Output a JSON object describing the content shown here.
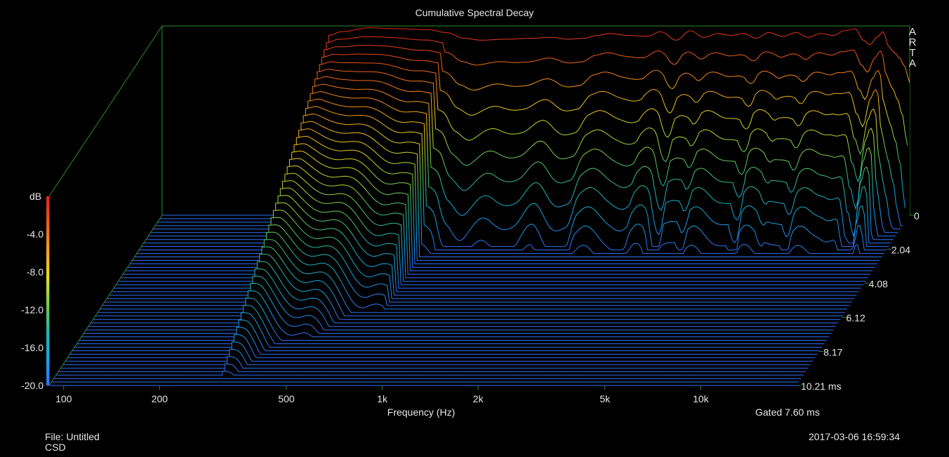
{
  "chart_data": {
    "type": "waterfall",
    "title": "Cumulative Spectral Decay",
    "brand": "ARTA",
    "xlabel": "Frequency (Hz)",
    "x_ticks": [
      {
        "value": 100,
        "label": "100"
      },
      {
        "value": 200,
        "label": "200"
      },
      {
        "value": 500,
        "label": "500"
      },
      {
        "value": 1000,
        "label": "1k"
      },
      {
        "value": 2000,
        "label": "2k"
      },
      {
        "value": 5000,
        "label": "5k"
      },
      {
        "value": 10000,
        "label": "10k"
      }
    ],
    "xlim": [
      90,
      20000
    ],
    "x_scale": "log",
    "zlabel": "dB",
    "z_ticks": [
      {
        "value": -4,
        "label": "-4.0"
      },
      {
        "value": -8,
        "label": "-8.0"
      },
      {
        "value": -12,
        "label": "-12.0"
      },
      {
        "value": -16,
        "label": "-16.0"
      },
      {
        "value": -20,
        "label": "-20.0"
      }
    ],
    "zlim": [
      -20,
      0
    ],
    "time_ticks": [
      {
        "value": 0,
        "label": "0"
      },
      {
        "value": 2.04,
        "label": "2.04"
      },
      {
        "value": 4.08,
        "label": "4.08"
      },
      {
        "value": 6.12,
        "label": "6.12"
      },
      {
        "value": 8.17,
        "label": "8.17"
      },
      {
        "value": 10.21,
        "label": "10.21 ms"
      }
    ],
    "time_range_ms": [
      0,
      10.21
    ],
    "slice_count": 50,
    "active_band_hz": [
      300,
      20000
    ],
    "initial_response": {
      "freq_hz": [
        300,
        330,
        400,
        500,
        620,
        700,
        800,
        900,
        1100,
        1300,
        1500,
        1700,
        1900,
        2100,
        2300,
        2600,
        3000,
        3300,
        3700,
        4100,
        4500,
        5000,
        5500,
        6000,
        6600,
        7200,
        8000,
        8800,
        9600,
        10500,
        11500,
        12500,
        13500,
        14300,
        15000,
        15800,
        16500,
        17200,
        17900,
        18600,
        19300,
        20000
      ],
      "db": [
        -1.0,
        -0.6,
        -0.2,
        -0.3,
        -0.4,
        -0.7,
        -1.3,
        -1.5,
        -1.4,
        -1.3,
        -1.2,
        -1.4,
        -1.3,
        -1.0,
        -0.8,
        -1.0,
        -1.1,
        -0.6,
        -1.5,
        -0.5,
        -1.2,
        -0.8,
        -1.0,
        -0.8,
        -1.3,
        -0.7,
        -1.1,
        -0.7,
        -1.2,
        -0.8,
        -1.0,
        -0.5,
        -0.3,
        -1.5,
        -2.0,
        -1.2,
        -0.6,
        -2.2,
        -2.8,
        -3.4,
        -4.3,
        -6.0
      ]
    },
    "colorbar": [
      "#e02018",
      "#f05a16",
      "#f5a018",
      "#e8e020",
      "#70d040",
      "#20b8a8",
      "#10a8e8",
      "#3070f8"
    ]
  },
  "footer": {
    "gated": "Gated 7.60 ms",
    "file": "File: Untitled",
    "kind": "CSD",
    "timestamp": "2017-03-06  16:59:34"
  }
}
